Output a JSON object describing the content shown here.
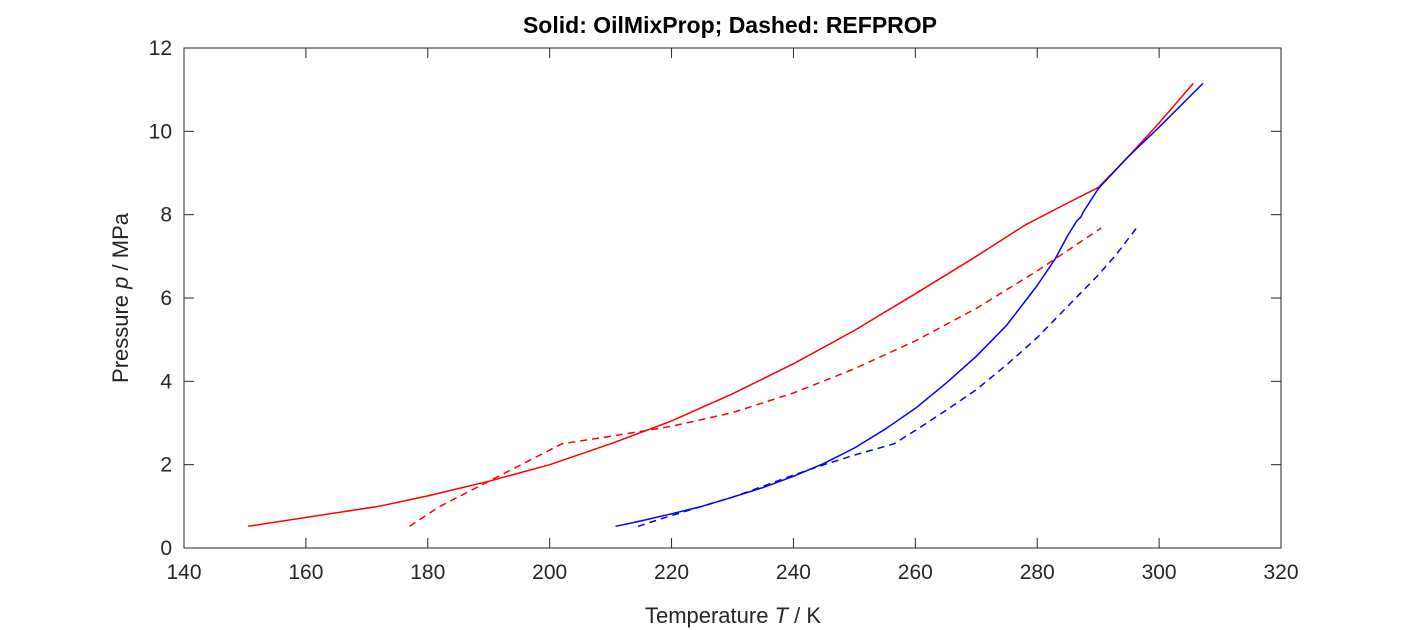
{
  "chart_data": {
    "type": "line",
    "title": "Solid: OilMixProp; Dashed: REFPROP",
    "xlabel": {
      "pre": "Temperature ",
      "var": "T",
      "post": " / K"
    },
    "ylabel": {
      "pre": "Pressure ",
      "var": "p",
      "post": " / MPa"
    },
    "xlim": [
      140,
      320
    ],
    "ylim": [
      0,
      12
    ],
    "xticks": [
      140,
      160,
      180,
      200,
      220,
      240,
      260,
      280,
      300,
      320
    ],
    "yticks": [
      0,
      2,
      4,
      6,
      8,
      10,
      12
    ],
    "grid": false,
    "legend": "none",
    "series": [
      {
        "color": "#ff0000",
        "style": "solid",
        "x": [
          150.5,
          172,
          180,
          190,
          200,
          210,
          220,
          230,
          240,
          250,
          260,
          270,
          278,
          285,
          290,
          295,
          300,
          305.6
        ],
        "y": [
          0.52,
          1.0,
          1.25,
          1.6,
          2.0,
          2.5,
          3.05,
          3.7,
          4.42,
          5.22,
          6.1,
          7.0,
          7.75,
          8.28,
          8.65,
          9.4,
          10.2,
          11.15
        ]
      },
      {
        "color": "#ff0000",
        "style": "dashed",
        "x": [
          177,
          182,
          192,
          202,
          210,
          220,
          230,
          240,
          250,
          260,
          270,
          280,
          290.5
        ],
        "y": [
          0.52,
          1.0,
          1.75,
          2.5,
          2.68,
          2.92,
          3.25,
          3.72,
          4.3,
          4.97,
          5.75,
          6.65,
          7.68
        ]
      },
      {
        "color": "#0000ff",
        "style": "solid",
        "x": [
          210.8,
          215,
          220,
          225,
          230,
          235,
          240,
          245,
          250,
          255,
          260,
          265,
          270,
          275,
          280,
          283,
          285,
          286.5,
          287.2,
          287.5,
          290,
          295,
          300,
          307.2
        ],
        "y": [
          0.52,
          0.65,
          0.82,
          1.0,
          1.22,
          1.45,
          1.72,
          2.03,
          2.4,
          2.85,
          3.35,
          3.95,
          4.6,
          5.35,
          6.3,
          6.95,
          7.5,
          7.85,
          7.95,
          8.05,
          8.62,
          9.4,
          10.1,
          11.15
        ]
      },
      {
        "color": "#0000ff",
        "style": "dashed",
        "x": [
          214.5,
          220,
          225,
          230,
          235,
          240,
          245,
          250,
          256.5,
          260,
          265,
          270,
          275,
          280,
          285,
          290,
          293,
          296.5
        ],
        "y": [
          0.52,
          0.78,
          1.0,
          1.22,
          1.48,
          1.75,
          2.0,
          2.23,
          2.5,
          2.82,
          3.3,
          3.8,
          4.4,
          5.05,
          5.8,
          6.55,
          7.05,
          7.72
        ]
      }
    ]
  }
}
